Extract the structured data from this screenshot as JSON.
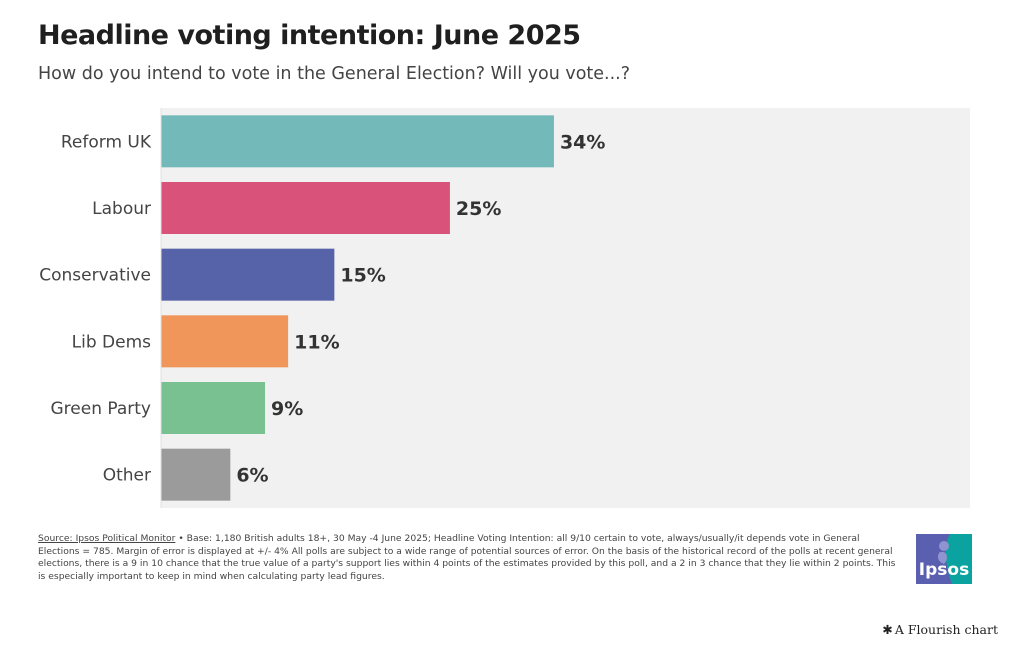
{
  "chart_data": {
    "type": "bar",
    "orientation": "horizontal",
    "title": "Headline voting intention: June 2025",
    "subtitle": "How do you intend to vote in the General Election? Will you vote...?",
    "categories": [
      "Reform UK",
      "Labour",
      "Conservative",
      "Lib Dems",
      "Green Party",
      "Other"
    ],
    "values": [
      34,
      25,
      15,
      11,
      9,
      6
    ],
    "value_labels": [
      "34%",
      "25%",
      "15%",
      "11%",
      "9%",
      "6%"
    ],
    "colors": [
      "#74b9b9",
      "#d8527a",
      "#5763a8",
      "#f0965a",
      "#79c190",
      "#9b9b9b"
    ],
    "xlim": [
      0,
      70
    ],
    "grid": false,
    "plot_background": "#f1f1f1"
  },
  "footer": {
    "source_link": "Source: Ipsos Political Monitor",
    "note": " • Base: 1,180 British adults 18+, 30 May -4 June 2025; Headline Voting Intention: all 9/10 certain to vote, always/usually/it depends vote in General Elections = 785. Margin of error is displayed at +/- 4% All polls are subject to a wide range of potential sources of error. On the basis of the historical record of the polls at recent general elections, there is a 9 in 10 chance that the true value of a party's support lies within 4 points of the estimates provided by this poll, and a 2 in 3 chance that they lie within 2 points. This is especially important to keep in mind when calculating party lead figures."
  },
  "logo": {
    "text": "Ipsos",
    "color": "#009d9a",
    "accent": "#5b5fb0"
  },
  "credit": {
    "icon": "flourish-star-icon",
    "text": "A Flourish chart"
  }
}
